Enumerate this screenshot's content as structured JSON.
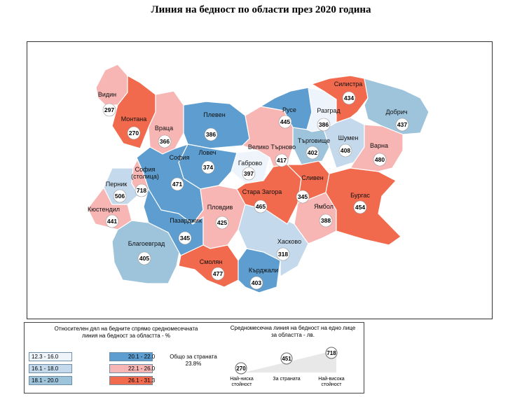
{
  "title": "Линия на бедност по области през 2020 година",
  "colors": {
    "c1": "#eef4fb",
    "c2": "#c5d9ec",
    "c3": "#9ec4dc",
    "c4": "#5d9dcf",
    "c5": "#f7b6b4",
    "c6": "#f16a4d"
  },
  "regions": [
    {
      "id": "vidin",
      "name": "Видин",
      "value": "297",
      "color": "c5"
    },
    {
      "id": "montana",
      "name": "Монтана",
      "value": "270",
      "color": "c6"
    },
    {
      "id": "vratsa",
      "name": "Враца",
      "value": "366",
      "color": "c5"
    },
    {
      "id": "pleven",
      "name": "Плевен",
      "value": "386",
      "color": "c4"
    },
    {
      "id": "ruse",
      "name": "Русе",
      "value": "445",
      "color": "c4"
    },
    {
      "id": "razgrad",
      "name": "Разград",
      "value": "386",
      "color": "c1"
    },
    {
      "id": "silistra",
      "name": "Силистра",
      "value": "434",
      "color": "c6"
    },
    {
      "id": "dobrich",
      "name": "Добрич",
      "value": "437",
      "color": "c3"
    },
    {
      "id": "shumen",
      "name": "Шумен",
      "value": "408",
      "color": "c2"
    },
    {
      "id": "targovishte",
      "name": "Търговище",
      "value": "402",
      "color": "c3"
    },
    {
      "id": "varna",
      "name": "Варна",
      "value": "480",
      "color": "c5"
    },
    {
      "id": "vtarnovo",
      "name": "Велико Търново",
      "value": "417",
      "color": "c5"
    },
    {
      "id": "gabrovo",
      "name": "Габрово",
      "value": "397",
      "color": "c1"
    },
    {
      "id": "lovech",
      "name": "Ловеч",
      "value": "374",
      "color": "c4"
    },
    {
      "id": "sofia",
      "name": "София",
      "value": "471",
      "color": "c4"
    },
    {
      "id": "sofia_city",
      "name": "София (столица)",
      "value": "718",
      "color": "c5"
    },
    {
      "id": "pernik",
      "name": "Перник",
      "value": "506",
      "color": "c2"
    },
    {
      "id": "kyustendil",
      "name": "Кюстендил",
      "value": "441",
      "color": "c5"
    },
    {
      "id": "blagoevgrad",
      "name": "Благоевград",
      "value": "405",
      "color": "c3"
    },
    {
      "id": "pazardzhik",
      "name": "Пазарджик",
      "value": "345",
      "color": "c4"
    },
    {
      "id": "plovdiv",
      "name": "Пловдив",
      "value": "425",
      "color": "c5"
    },
    {
      "id": "smolyan",
      "name": "Смолян",
      "value": "477",
      "color": "c6"
    },
    {
      "id": "kardzhali",
      "name": "Кърджали",
      "value": "403",
      "color": "c4"
    },
    {
      "id": "haskovo",
      "name": "Хасково",
      "value": "318",
      "color": "c2"
    },
    {
      "id": "stara_zagora",
      "name": "Стара Загора",
      "value": "465",
      "color": "c6"
    },
    {
      "id": "sliven",
      "name": "Сливен",
      "value": "345",
      "color": "c6"
    },
    {
      "id": "yambol",
      "name": "Ямбол",
      "value": "388",
      "color": "c5"
    },
    {
      "id": "burgas",
      "name": "Бургас",
      "value": "454",
      "color": "c6"
    }
  ],
  "legend": {
    "title": "Относителен дял на бедните спрямо средномесечната линия на бедност за областта - %",
    "classes": [
      {
        "label": "12.3 - 16.0",
        "color": "c1"
      },
      {
        "label": "16.1 - 18.0",
        "color": "c2"
      },
      {
        "label": "18.1 - 20.0",
        "color": "c3"
      },
      {
        "label": "20.1 - 22.0",
        "color": "c4"
      },
      {
        "label": "22.1 - 26.0",
        "color": "c5"
      },
      {
        "label": "26.1 - 31.3",
        "color": "c6"
      }
    ],
    "total_label": "Общо за страната",
    "total_value": "23.8%",
    "scale_title": "Средномесечна линия на бедност на едно лице за областта - лв.",
    "scale_min_value": "270",
    "scale_min_label": "Най-ниска стойност",
    "scale_mid_value": "451",
    "scale_mid_label": "За страната",
    "scale_max_value": "718",
    "scale_max_label": "Най-висока стойност"
  }
}
